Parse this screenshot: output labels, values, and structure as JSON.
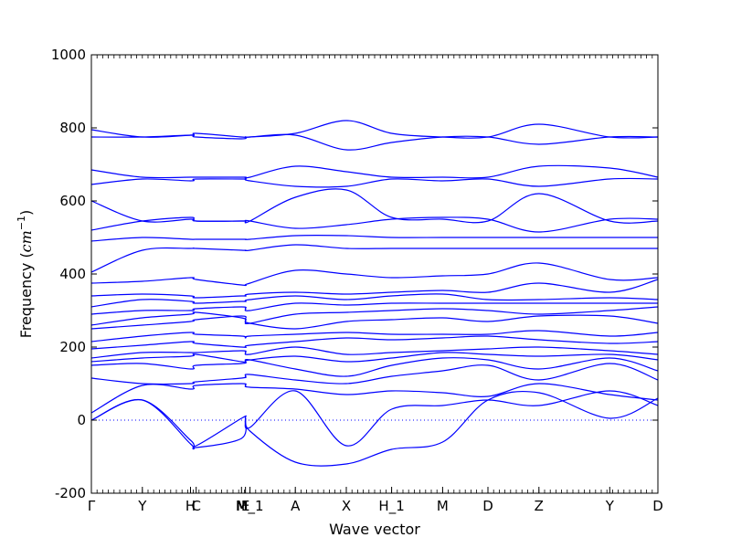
{
  "chart_data": {
    "type": "line",
    "title": "",
    "xlabel": "Wave vector",
    "ylabel": "Frequency (cm^-1)",
    "ylabel_parts": {
      "main": "Frequency (",
      "unit": "cm",
      "exp": "−1",
      "close": ")"
    },
    "ylim": [
      -200,
      1000
    ],
    "yticks": [
      -200,
      0,
      200,
      400,
      600,
      800,
      1000
    ],
    "xlim": [
      0,
      10
    ],
    "xticks": [
      {
        "x": 0.0,
        "label": "Γ"
      },
      {
        "x": 0.9,
        "label": "Y"
      },
      {
        "x": 1.75,
        "label": "H"
      },
      {
        "x": 1.85,
        "label": "C"
      },
      {
        "x": 2.65,
        "label": "M"
      },
      {
        "x": 2.72,
        "label": "E"
      },
      {
        "x": 2.8,
        "label": "M_1"
      },
      {
        "x": 3.6,
        "label": "A"
      },
      {
        "x": 4.5,
        "label": "X"
      },
      {
        "x": 5.3,
        "label": "H_1"
      },
      {
        "x": 6.2,
        "label": "M"
      },
      {
        "x": 7.0,
        "label": "D"
      },
      {
        "x": 7.9,
        "label": "Z"
      },
      {
        "x": 9.15,
        "label": "Y"
      },
      {
        "x": 10.0,
        "label": "D"
      }
    ],
    "zero_line": true,
    "line_color": "#0000ff",
    "series": [
      {
        "x": [
          0,
          0.9,
          1.75,
          1.85,
          2.65,
          2.72,
          2.8,
          3.6,
          4.5,
          5.3,
          6.2,
          7.0,
          7.9,
          9.15,
          10
        ],
        "values": [
          0,
          55,
          -65,
          -75,
          -50,
          5,
          -30,
          -115,
          -120,
          -80,
          -60,
          55,
          75,
          5,
          60
        ]
      },
      {
        "x": [
          0,
          0.9,
          1.75,
          1.85,
          2.65,
          2.72,
          2.8,
          3.6,
          4.5,
          5.3,
          6.2,
          7.0,
          7.9,
          9.15,
          10
        ],
        "values": [
          0,
          55,
          -55,
          -70,
          5,
          5,
          -20,
          80,
          -70,
          30,
          40,
          55,
          40,
          80,
          40
        ]
      },
      {
        "x": [
          0,
          0.9,
          1.75,
          1.85,
          2.65,
          2.72,
          2.8,
          3.6,
          4.5,
          5.3,
          6.2,
          7.0,
          7.9,
          9.15,
          10
        ],
        "values": [
          20,
          95,
          85,
          95,
          100,
          95,
          90,
          85,
          70,
          80,
          75,
          65,
          100,
          70,
          55
        ]
      },
      {
        "x": [
          0,
          0.9,
          1.75,
          1.85,
          2.65,
          2.72,
          2.8,
          3.6,
          4.5,
          5.3,
          6.2,
          7.0,
          7.9,
          9.15,
          10
        ],
        "values": [
          115,
          100,
          100,
          105,
          115,
          120,
          125,
          110,
          100,
          120,
          135,
          150,
          110,
          155,
          110
        ]
      },
      {
        "x": [
          0,
          0.9,
          1.75,
          1.85,
          2.65,
          2.72,
          2.8,
          3.6,
          4.5,
          5.3,
          6.2,
          7.0,
          7.9,
          9.15,
          10
        ],
        "values": [
          150,
          155,
          140,
          150,
          155,
          160,
          165,
          140,
          120,
          150,
          170,
          165,
          140,
          170,
          135
        ]
      },
      {
        "x": [
          0,
          0.9,
          1.75,
          1.85,
          2.65,
          2.72,
          2.8,
          3.6,
          4.5,
          5.3,
          6.2,
          7.0,
          7.9,
          9.15,
          10
        ],
        "values": [
          160,
          170,
          175,
          180,
          160,
          160,
          165,
          175,
          160,
          170,
          185,
          180,
          175,
          180,
          165
        ]
      },
      {
        "x": [
          0,
          0.9,
          1.75,
          1.85,
          2.65,
          2.72,
          2.8,
          3.6,
          4.5,
          5.3,
          6.2,
          7.0,
          7.9,
          9.15,
          10
        ],
        "values": [
          170,
          185,
          185,
          185,
          190,
          185,
          180,
          200,
          180,
          185,
          190,
          195,
          200,
          190,
          180
        ]
      },
      {
        "x": [
          0,
          0.9,
          1.75,
          1.85,
          2.65,
          2.72,
          2.8,
          3.6,
          4.5,
          5.3,
          6.2,
          7.0,
          7.9,
          9.15,
          10
        ],
        "values": [
          195,
          205,
          215,
          210,
          200,
          200,
          205,
          215,
          225,
          220,
          225,
          230,
          220,
          210,
          215
        ]
      },
      {
        "x": [
          0,
          0.9,
          1.75,
          1.85,
          2.65,
          2.72,
          2.8,
          3.6,
          4.5,
          5.3,
          6.2,
          7.0,
          7.9,
          9.15,
          10
        ],
        "values": [
          215,
          230,
          240,
          235,
          230,
          225,
          230,
          235,
          240,
          235,
          235,
          235,
          245,
          230,
          240
        ]
      },
      {
        "x": [
          0,
          0.9,
          1.75,
          1.85,
          2.65,
          2.72,
          2.8,
          3.6,
          4.5,
          5.3,
          6.2,
          7.0,
          7.9,
          9.15,
          10
        ],
        "values": [
          250,
          260,
          270,
          275,
          285,
          275,
          265,
          250,
          270,
          275,
          280,
          270,
          285,
          285,
          265
        ]
      },
      {
        "x": [
          0,
          0.9,
          1.75,
          1.85,
          2.65,
          2.72,
          2.8,
          3.6,
          4.5,
          5.3,
          6.2,
          7.0,
          7.9,
          9.15,
          10
        ],
        "values": [
          260,
          280,
          290,
          295,
          280,
          270,
          265,
          290,
          295,
          300,
          305,
          300,
          290,
          300,
          310
        ]
      },
      {
        "x": [
          0,
          0.9,
          1.75,
          1.85,
          2.65,
          2.72,
          2.8,
          3.6,
          4.5,
          5.3,
          6.2,
          7.0,
          7.9,
          9.15,
          10
        ],
        "values": [
          290,
          300,
          300,
          305,
          310,
          305,
          300,
          320,
          315,
          320,
          320,
          320,
          320,
          320,
          320
        ]
      },
      {
        "x": [
          0,
          0.9,
          1.75,
          1.85,
          2.65,
          2.72,
          2.8,
          3.6,
          4.5,
          5.3,
          6.2,
          7.0,
          7.9,
          9.15,
          10
        ],
        "values": [
          310,
          330,
          325,
          320,
          325,
          325,
          330,
          340,
          330,
          340,
          345,
          330,
          330,
          335,
          330
        ]
      },
      {
        "x": [
          0,
          0.9,
          1.75,
          1.85,
          2.65,
          2.72,
          2.8,
          3.6,
          4.5,
          5.3,
          6.2,
          7.0,
          7.9,
          9.15,
          10
        ],
        "values": [
          340,
          345,
          340,
          335,
          340,
          340,
          345,
          350,
          345,
          350,
          355,
          350,
          375,
          350,
          385
        ]
      },
      {
        "x": [
          0,
          0.9,
          1.75,
          1.85,
          2.65,
          2.72,
          2.8,
          3.6,
          4.5,
          5.3,
          6.2,
          7.0,
          7.9,
          9.15,
          10
        ],
        "values": [
          375,
          380,
          390,
          385,
          370,
          370,
          375,
          410,
          400,
          390,
          395,
          400,
          430,
          385,
          390
        ]
      },
      {
        "x": [
          0,
          0.9,
          1.75,
          1.85,
          2.65,
          2.72,
          2.8,
          3.6,
          4.5,
          5.3,
          6.2,
          7.0,
          7.9,
          9.15,
          10
        ],
        "values": [
          405,
          465,
          470,
          470,
          465,
          465,
          465,
          480,
          470,
          470,
          470,
          470,
          470,
          470,
          470
        ]
      },
      {
        "x": [
          0,
          0.9,
          1.75,
          1.85,
          2.65,
          2.72,
          2.8,
          3.6,
          4.5,
          5.3,
          6.2,
          7.0,
          7.9,
          9.15,
          10
        ],
        "values": [
          490,
          500,
          495,
          495,
          495,
          495,
          495,
          505,
          505,
          500,
          500,
          500,
          500,
          500,
          500
        ]
      },
      {
        "x": [
          0,
          0.9,
          1.75,
          1.85,
          2.65,
          2.72,
          2.8,
          3.6,
          4.5,
          5.3,
          6.2,
          7.0,
          7.9,
          9.15,
          10
        ],
        "values": [
          520,
          545,
          555,
          545,
          545,
          545,
          545,
          525,
          535,
          550,
          555,
          550,
          515,
          550,
          550
        ]
      },
      {
        "x": [
          0,
          0.9,
          1.75,
          1.85,
          2.65,
          2.72,
          2.8,
          3.6,
          4.5,
          5.3,
          6.2,
          7.0,
          7.9,
          9.15,
          10
        ],
        "values": [
          600,
          545,
          550,
          545,
          545,
          545,
          545,
          610,
          630,
          555,
          550,
          545,
          620,
          545,
          545
        ]
      },
      {
        "x": [
          0,
          0.9,
          1.75,
          1.85,
          2.65,
          2.72,
          2.8,
          3.6,
          4.5,
          5.3,
          6.2,
          7.0,
          7.9,
          9.15,
          10
        ],
        "values": [
          645,
          660,
          655,
          660,
          660,
          660,
          655,
          640,
          640,
          660,
          655,
          660,
          640,
          660,
          660
        ]
      },
      {
        "x": [
          0,
          0.9,
          1.75,
          1.85,
          2.65,
          2.72,
          2.8,
          3.6,
          4.5,
          5.3,
          6.2,
          7.0,
          7.9,
          9.15,
          10
        ],
        "values": [
          685,
          665,
          665,
          665,
          665,
          665,
          665,
          695,
          680,
          665,
          665,
          665,
          695,
          690,
          665
        ]
      },
      {
        "x": [
          0,
          0.9,
          1.75,
          1.85,
          2.65,
          2.72,
          2.8,
          3.6,
          4.5,
          5.3,
          6.2,
          7.0,
          7.9,
          9.15,
          10
        ],
        "values": [
          775,
          775,
          780,
          775,
          770,
          775,
          775,
          780,
          740,
          760,
          775,
          775,
          755,
          775,
          775
        ]
      },
      {
        "x": [
          0,
          0.9,
          1.75,
          1.85,
          2.65,
          2.72,
          2.8,
          3.6,
          4.5,
          5.3,
          6.2,
          7.0,
          7.9,
          9.15,
          10
        ],
        "values": [
          795,
          775,
          780,
          785,
          775,
          775,
          775,
          785,
          820,
          785,
          775,
          775,
          810,
          775,
          775
        ]
      }
    ]
  }
}
